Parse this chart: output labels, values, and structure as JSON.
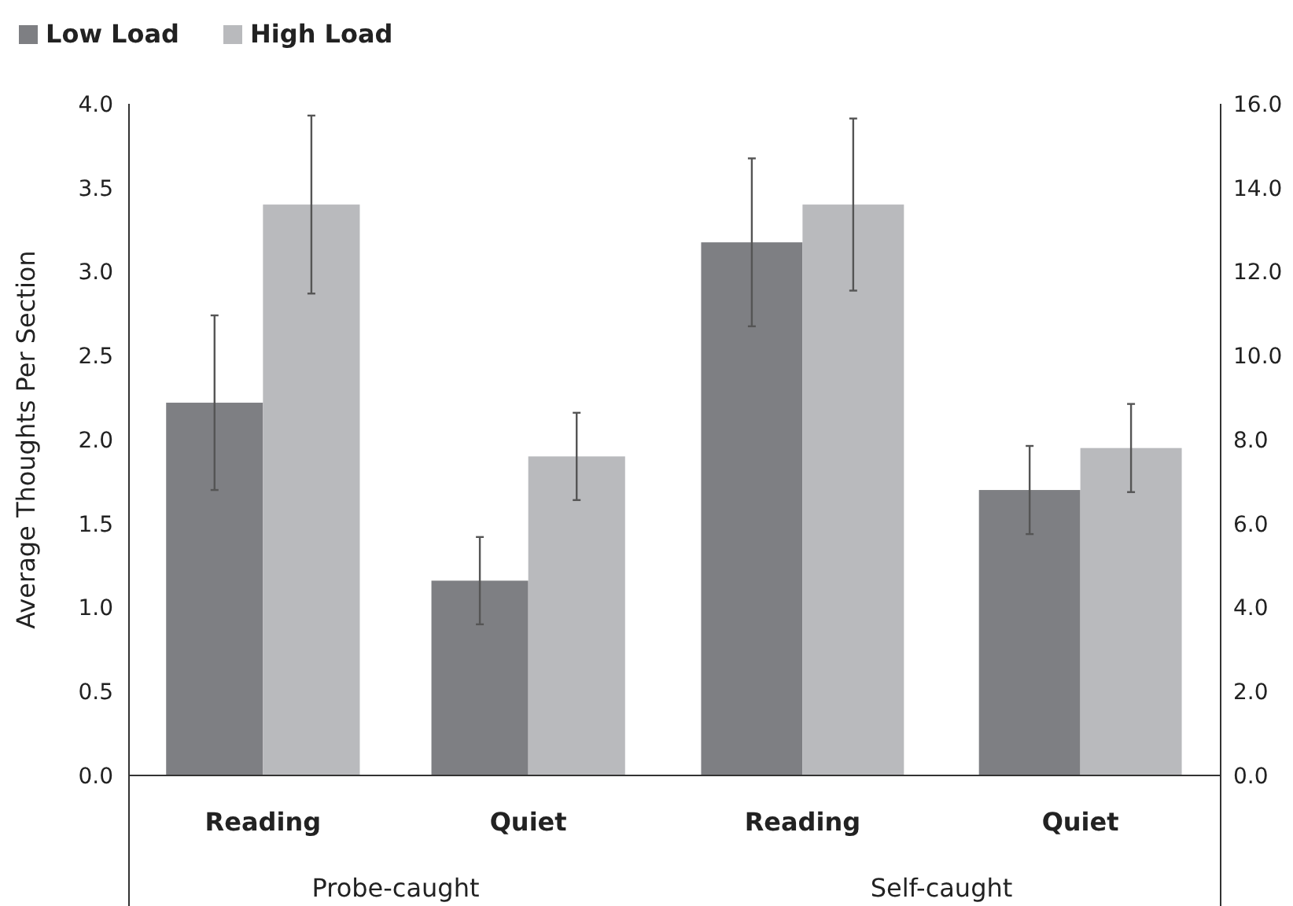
{
  "chart_data": [
    {
      "type": "bar",
      "categories": [
        "Reading",
        "Quiet"
      ],
      "xlabel": "Probe-caught",
      "ylabel": "Average Thoughts Per Section",
      "ylim": [
        0,
        4
      ],
      "yticks": [
        {
          "value": 0,
          "label": "0.0"
        },
        {
          "value": 0.5,
          "label": "0.5"
        },
        {
          "value": 1,
          "label": "1.0"
        },
        {
          "value": 1.5,
          "label": "1.5"
        },
        {
          "value": 2,
          "label": "2.0"
        },
        {
          "value": 2.5,
          "label": "2.5"
        },
        {
          "value": 3,
          "label": "3.0"
        },
        {
          "value": 3.5,
          "label": "3.5"
        },
        {
          "value": 4,
          "label": "4.0"
        }
      ],
      "legend": "top left",
      "grid": false,
      "series": [
        {
          "name": "Low Load",
          "color": "#7e7f83",
          "values": [
            2.22,
            1.16
          ],
          "errors": [
            0.52,
            0.26
          ]
        },
        {
          "name": "High Load",
          "color": "#b9babd",
          "values": [
            3.4,
            1.9
          ],
          "errors": [
            0.53,
            0.26
          ]
        }
      ]
    },
    {
      "type": "bar",
      "categories": [
        "Reading",
        "Quiet"
      ],
      "xlabel": "Self-caught",
      "y2lim": [
        0,
        16
      ],
      "y2ticks": [
        {
          "value": 0,
          "label": "0.0"
        },
        {
          "value": 2,
          "label": "2.0"
        },
        {
          "value": 4,
          "label": "4.0"
        },
        {
          "value": 6,
          "label": "6.0"
        },
        {
          "value": 8,
          "label": "8.0"
        },
        {
          "value": 10,
          "label": "10.0"
        },
        {
          "value": 12,
          "label": "12.0"
        },
        {
          "value": 14,
          "label": "14.0"
        },
        {
          "value": 16,
          "label": "16.0"
        }
      ],
      "grid": false,
      "series": [
        {
          "axis": "y2",
          "color": "#7e7f83",
          "values": [
            12.7,
            6.8
          ],
          "errors": [
            2.0,
            1.05
          ]
        },
        {
          "axis": "y2",
          "color": "#b9babd",
          "values": [
            13.6,
            7.8
          ],
          "errors": [
            2.05,
            1.05
          ]
        }
      ]
    }
  ]
}
